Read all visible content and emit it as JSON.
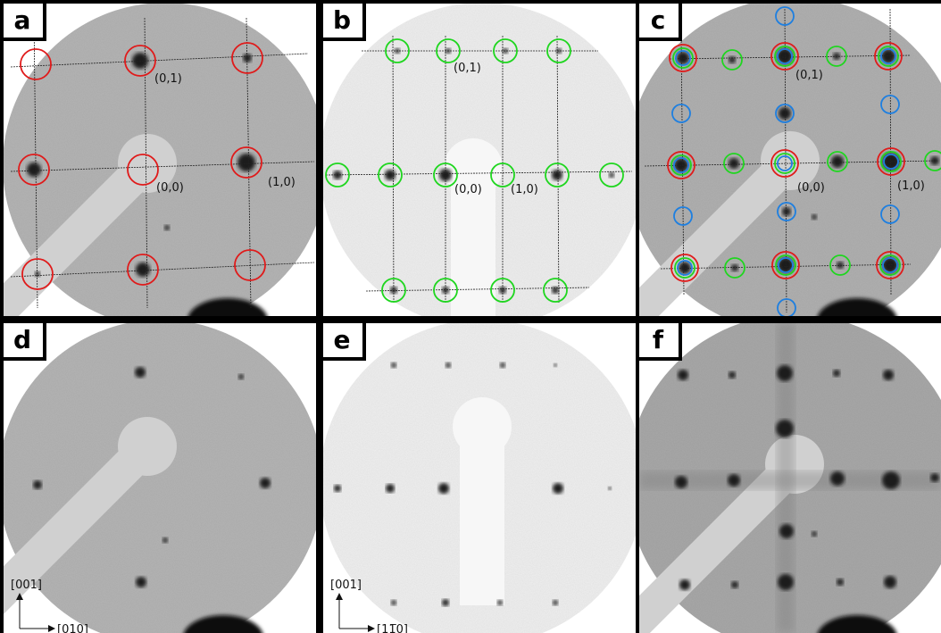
{
  "panels": [
    {
      "label": "a",
      "spot_labels": [
        "(0,1)",
        "(0,0)",
        "(1,0)"
      ]
    },
    {
      "label": "b",
      "spot_labels": [
        "(0,1)",
        "(0,0)",
        "(1,0)"
      ]
    },
    {
      "label": "c",
      "spot_labels": [
        "(0,1)",
        "(0,0)",
        "(1,0)"
      ]
    },
    {
      "label": "d",
      "axes": [
        "[001]",
        "[010]"
      ]
    },
    {
      "label": "e",
      "axes": [
        "[001]",
        "[11̅0]"
      ]
    },
    {
      "label": "f"
    }
  ]
}
